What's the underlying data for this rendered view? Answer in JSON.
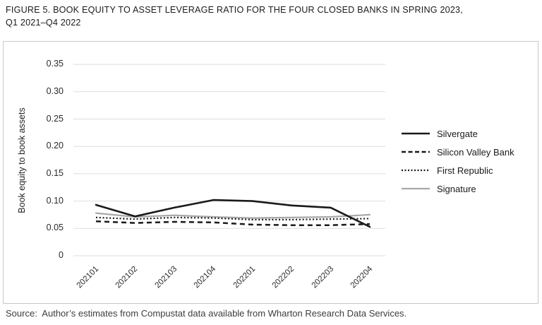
{
  "figure": {
    "title_lines": [
      "FIGURE 5. BOOK EQUITY TO ASSET LEVERAGE RATIO FOR THE FOUR CLOSED BANKS IN SPRING 2023,",
      "Q1 2021–Q4 2022"
    ],
    "source": "Source:  Author’s estimates from Compustat data available from Wharton Research Data Services."
  },
  "chart_data": {
    "type": "line",
    "title": "Book equity to asset leverage ratio for the four closed banks in Spring 2023, Q1 2021–Q4 2022",
    "xlabel": "",
    "ylabel": "Book equity to book assets",
    "x": [
      "202101",
      "202102",
      "202103",
      "202104",
      "202201",
      "202202",
      "202203",
      "202204"
    ],
    "series": [
      {
        "name": "Silvergate",
        "style": "solid-black",
        "color": "#1a1a1a",
        "values": [
          0.093,
          0.072,
          0.088,
          0.102,
          0.1,
          0.092,
          0.088,
          0.053
        ]
      },
      {
        "name": "Silicon Valley Bank",
        "style": "dashed-black",
        "color": "#1a1a1a",
        "values": [
          0.063,
          0.06,
          0.062,
          0.061,
          0.057,
          0.056,
          0.056,
          0.058
        ]
      },
      {
        "name": "First Republic",
        "style": "dotted-black",
        "color": "#1a1a1a",
        "values": [
          0.07,
          0.067,
          0.07,
          0.069,
          0.066,
          0.066,
          0.067,
          0.068
        ]
      },
      {
        "name": "Signature",
        "style": "solid-gray",
        "color": "#a8a8a8",
        "values": [
          0.078,
          0.071,
          0.074,
          0.071,
          0.069,
          0.07,
          0.071,
          0.075
        ]
      }
    ],
    "ylim": [
      0,
      0.35
    ],
    "y_ticks": [
      {
        "value": 0.35,
        "label": "0.35"
      },
      {
        "value": 0.3,
        "label": "0.30"
      },
      {
        "value": 0.25,
        "label": "0.25"
      },
      {
        "value": 0.2,
        "label": "0.20"
      },
      {
        "value": 0.15,
        "label": "0.15"
      },
      {
        "value": 0.1,
        "label": "0.10"
      },
      {
        "value": 0.05,
        "label": "0.05"
      },
      {
        "value": 0,
        "label": "0"
      }
    ],
    "grid": "horizontal",
    "gridline_color": "#dedede",
    "legend_position": "right"
  }
}
